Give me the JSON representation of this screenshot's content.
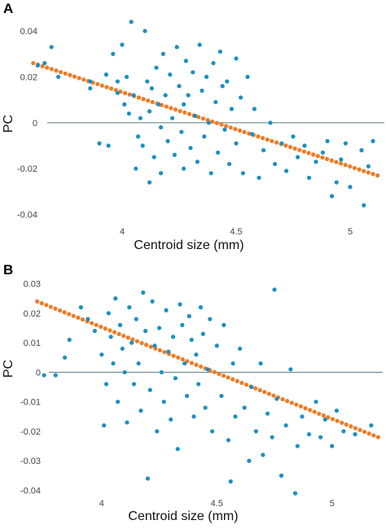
{
  "chart_data": [
    {
      "panel": "A",
      "type": "scatter",
      "xlabel": "Centroid size (mm)",
      "ylabel": "PC",
      "xlim": [
        3.6,
        5.15
      ],
      "ylim": [
        -0.043,
        0.045
      ],
      "xticks": [
        "4",
        "4.5",
        "5"
      ],
      "yticks": [
        "0.04",
        "0.02",
        "0",
        "-0.02",
        "-0.04"
      ],
      "grid": false,
      "zero_line": true,
      "colors": {
        "points": "#1b8fc4",
        "fit": "#f07a24",
        "zero_line": "#6b8a8a"
      },
      "series": [
        {
          "kind": "points",
          "points": [
            [
              3.63,
              0.025
            ],
            [
              3.66,
              0.026
            ],
            [
              3.69,
              0.033
            ],
            [
              3.72,
              0.02
            ],
            [
              3.86,
              0.015
            ],
            [
              3.86,
              0.018
            ],
            [
              3.9,
              -0.009
            ],
            [
              3.93,
              0.021
            ],
            [
              3.94,
              -0.01
            ],
            [
              3.96,
              0.03
            ],
            [
              3.98,
              0.018
            ],
            [
              3.98,
              0.013
            ],
            [
              4.0,
              0.034
            ],
            [
              4.01,
              0.008
            ],
            [
              4.02,
              0.02
            ],
            [
              4.03,
              0.004
            ],
            [
              4.04,
              0.044
            ],
            [
              4.05,
              0.012
            ],
            [
              4.06,
              -0.02
            ],
            [
              4.07,
              -0.006
            ],
            [
              4.08,
              0.002
            ],
            [
              4.09,
              -0.01
            ],
            [
              4.1,
              0.04
            ],
            [
              4.11,
              0.018
            ],
            [
              4.12,
              0.005
            ],
            [
              4.12,
              -0.026
            ],
            [
              4.13,
              0.015
            ],
            [
              4.14,
              -0.015
            ],
            [
              4.15,
              0.024
            ],
            [
              4.16,
              0.008
            ],
            [
              4.17,
              -0.002
            ],
            [
              4.17,
              -0.022
            ],
            [
              4.18,
              0.03
            ],
            [
              4.19,
              0.012
            ],
            [
              4.2,
              -0.008
            ],
            [
              4.21,
              0.021
            ],
            [
              4.22,
              0.002
            ],
            [
              4.23,
              -0.014
            ],
            [
              4.24,
              0.033
            ],
            [
              4.25,
              0.016
            ],
            [
              4.26,
              -0.004
            ],
            [
              4.27,
              0.008
            ],
            [
              4.27,
              -0.02
            ],
            [
              4.28,
              0.027
            ],
            [
              4.29,
              0.012
            ],
            [
              4.3,
              -0.011
            ],
            [
              4.31,
              0.022
            ],
            [
              4.32,
              0.003
            ],
            [
              4.33,
              -0.017
            ],
            [
              4.34,
              0.034
            ],
            [
              4.35,
              0.014
            ],
            [
              4.36,
              -0.006
            ],
            [
              4.37,
              0.02
            ],
            [
              4.38,
              0.0
            ],
            [
              4.39,
              -0.022
            ],
            [
              4.4,
              0.026
            ],
            [
              4.41,
              0.009
            ],
            [
              4.42,
              -0.013
            ],
            [
              4.43,
              0.031
            ],
            [
              4.44,
              0.016
            ],
            [
              4.45,
              -0.003
            ],
            [
              4.46,
              0.018
            ],
            [
              4.47,
              -0.018
            ],
            [
              4.48,
              0.006
            ],
            [
              4.5,
              0.028
            ],
            [
              4.5,
              -0.009
            ],
            [
              4.52,
              0.011
            ],
            [
              4.53,
              -0.022
            ],
            [
              4.55,
              0.02
            ],
            [
              4.57,
              -0.005
            ],
            [
              4.58,
              0.006
            ],
            [
              4.6,
              -0.024
            ],
            [
              4.62,
              -0.012
            ],
            [
              4.65,
              0.0
            ],
            [
              4.67,
              -0.018
            ],
            [
              4.7,
              -0.009
            ],
            [
              4.72,
              -0.021
            ],
            [
              4.75,
              -0.006
            ],
            [
              4.77,
              -0.015
            ],
            [
              4.8,
              -0.01
            ],
            [
              4.82,
              -0.024
            ],
            [
              4.85,
              -0.017
            ],
            [
              4.88,
              -0.013
            ],
            [
              4.9,
              -0.008
            ],
            [
              4.92,
              -0.032
            ],
            [
              4.94,
              -0.026
            ],
            [
              4.96,
              -0.016
            ],
            [
              4.98,
              -0.009
            ],
            [
              5.0,
              -0.028
            ],
            [
              5.05,
              -0.012
            ],
            [
              5.06,
              -0.036
            ],
            [
              5.08,
              -0.019
            ],
            [
              5.1,
              -0.008
            ]
          ]
        },
        {
          "kind": "fit",
          "points": [
            [
              3.61,
              0.026
            ],
            [
              5.12,
              -0.023
            ]
          ]
        }
      ]
    },
    {
      "panel": "B",
      "type": "scatter",
      "xlabel": "Centroid size (mm)",
      "ylabel": "PC",
      "xlim": [
        3.7,
        5.22
      ],
      "ylim": [
        -0.044,
        0.031
      ],
      "xticks": [
        "4",
        "4.5",
        "5"
      ],
      "yticks": [
        "0.03",
        "0.02",
        "0.01",
        "0",
        "-0.01",
        "-0.02",
        "-0.03",
        "-0.04"
      ],
      "grid": false,
      "zero_line": true,
      "colors": {
        "points": "#1b8fc4",
        "fit": "#f07a24",
        "zero_line": "#6b8a8a"
      },
      "series": [
        {
          "kind": "points",
          "points": [
            [
              3.75,
              -0.001
            ],
            [
              3.8,
              -0.001
            ],
            [
              3.84,
              0.005
            ],
            [
              3.86,
              0.011
            ],
            [
              3.91,
              0.022
            ],
            [
              3.94,
              0.018
            ],
            [
              3.97,
              0.014
            ],
            [
              4.0,
              0.006
            ],
            [
              4.01,
              -0.018
            ],
            [
              4.02,
              -0.004
            ],
            [
              4.03,
              0.02
            ],
            [
              4.04,
              0.012
            ],
            [
              4.05,
              0.003
            ],
            [
              4.06,
              0.025
            ],
            [
              4.07,
              -0.01
            ],
            [
              4.08,
              0.016
            ],
            [
              4.09,
              0.008
            ],
            [
              4.1,
              0.0
            ],
            [
              4.11,
              -0.017
            ],
            [
              4.12,
              0.022
            ],
            [
              4.13,
              0.01
            ],
            [
              4.14,
              -0.004
            ],
            [
              4.15,
              0.018
            ],
            [
              4.16,
              0.003
            ],
            [
              4.17,
              -0.013
            ],
            [
              4.18,
              0.027
            ],
            [
              4.19,
              0.014
            ],
            [
              4.2,
              -0.036
            ],
            [
              4.21,
              -0.006
            ],
            [
              4.22,
              0.024
            ],
            [
              4.23,
              0.009
            ],
            [
              4.24,
              -0.02
            ],
            [
              4.25,
              0.015
            ],
            [
              4.26,
              0.0
            ],
            [
              4.27,
              -0.01
            ],
            [
              4.28,
              0.021
            ],
            [
              4.29,
              0.007
            ],
            [
              4.3,
              -0.016
            ],
            [
              4.31,
              0.012
            ],
            [
              4.32,
              -0.002
            ],
            [
              4.33,
              -0.026
            ],
            [
              4.34,
              0.023
            ],
            [
              4.35,
              0.016
            ],
            [
              4.36,
              0.003
            ],
            [
              4.37,
              -0.008
            ],
            [
              4.38,
              0.019
            ],
            [
              4.39,
              0.011
            ],
            [
              4.4,
              -0.015
            ],
            [
              4.41,
              0.006
            ],
            [
              4.42,
              -0.004
            ],
            [
              4.43,
              0.022
            ],
            [
              4.44,
              0.013
            ],
            [
              4.45,
              -0.012
            ],
            [
              4.46,
              0.001
            ],
            [
              4.47,
              0.018
            ],
            [
              4.48,
              -0.02
            ],
            [
              4.5,
              0.009
            ],
            [
              4.52,
              -0.008
            ],
            [
              4.53,
              0.016
            ],
            [
              4.55,
              -0.023
            ],
            [
              4.56,
              -0.037
            ],
            [
              4.57,
              0.003
            ],
            [
              4.58,
              -0.015
            ],
            [
              4.6,
              0.008
            ],
            [
              4.62,
              -0.012
            ],
            [
              4.64,
              -0.03
            ],
            [
              4.65,
              -0.005
            ],
            [
              4.67,
              -0.02
            ],
            [
              4.69,
              0.003
            ],
            [
              4.7,
              -0.028
            ],
            [
              4.72,
              -0.014
            ],
            [
              4.74,
              -0.022
            ],
            [
              4.75,
              0.028
            ],
            [
              4.76,
              -0.009
            ],
            [
              4.78,
              -0.035
            ],
            [
              4.8,
              -0.018
            ],
            [
              4.82,
              0.001
            ],
            [
              4.84,
              -0.041
            ],
            [
              4.85,
              -0.025
            ],
            [
              4.87,
              -0.015
            ],
            [
              4.9,
              -0.021
            ],
            [
              4.93,
              -0.01
            ],
            [
              4.95,
              -0.022
            ],
            [
              4.97,
              -0.016
            ],
            [
              5.0,
              -0.025
            ],
            [
              5.02,
              -0.013
            ],
            [
              5.05,
              -0.02
            ],
            [
              5.1,
              -0.021
            ],
            [
              5.17,
              -0.018
            ]
          ]
        },
        {
          "kind": "fit",
          "points": [
            [
              3.72,
              0.024
            ],
            [
              5.2,
              -0.022
            ]
          ]
        }
      ]
    }
  ]
}
